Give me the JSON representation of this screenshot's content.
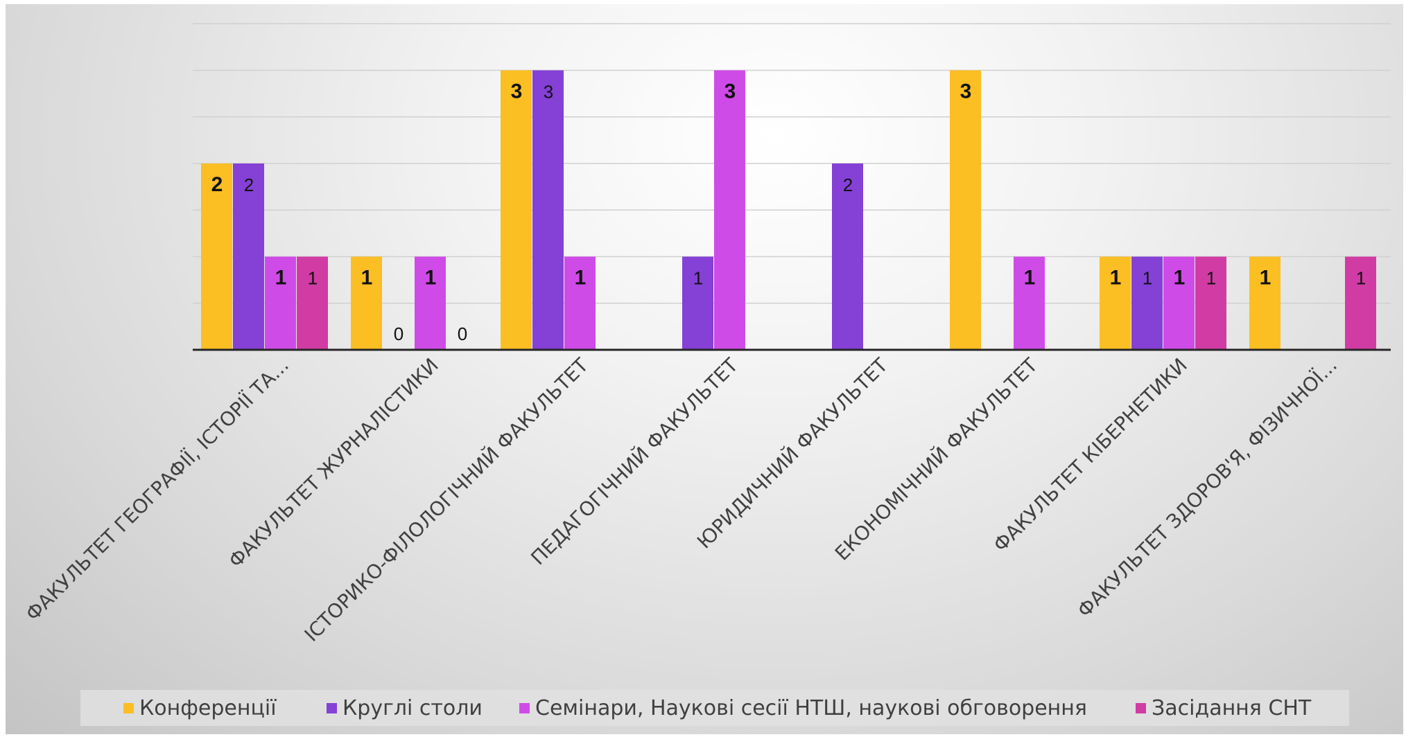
{
  "chart_data": {
    "type": "bar",
    "categories": [
      "ФАКУЛЬТЕТ ГЕОГРАФІЇ, ІСТОРІЇ ТА...",
      "ФАКУЛЬТЕТ ЖУРНАЛІСТИКИ",
      "ІСТОРИКО-ФІЛОЛОГІЧНИЙ ФАКУЛЬТЕТ",
      "ПЕДАГОГІЧНИЙ ФАКУЛЬТЕТ",
      "ЮРИДИЧНИЙ ФАКУЛЬТЕТ",
      "ЕКОНОМІЧНИЙ ФАКУЛЬТЕТ",
      "ФАКУЛЬТЕТ КІБЕРНЕТИКИ",
      "ФАКУЛЬТЕТ ЗДОРОВ'Я, ФІЗИЧНОЇ..."
    ],
    "series": [
      {
        "name": "Конференції",
        "color": "#FBBE23",
        "values": [
          2,
          1,
          3,
          null,
          null,
          3,
          1,
          1
        ],
        "label_style": "bold"
      },
      {
        "name": "Круглі столи",
        "color": "#8540D6",
        "values": [
          2,
          0,
          3,
          1,
          2,
          null,
          1,
          null
        ],
        "label_style": "normal"
      },
      {
        "name": "Семінари, Наукові сесії НТШ, наукові обговорення",
        "color": "#CF4BE7",
        "values": [
          1,
          1,
          1,
          3,
          null,
          1,
          1,
          null
        ],
        "label_style": "bold"
      },
      {
        "name": "Засідання СНТ",
        "color": "#D13BA4",
        "values": [
          1,
          0,
          null,
          null,
          null,
          null,
          1,
          1
        ],
        "label_style": "normal"
      }
    ],
    "ylim": [
      0,
      3.5
    ],
    "grid": true,
    "y_axis_labels": false,
    "legend_position": "bottom",
    "title": "",
    "xlabel": "",
    "ylabel": ""
  }
}
